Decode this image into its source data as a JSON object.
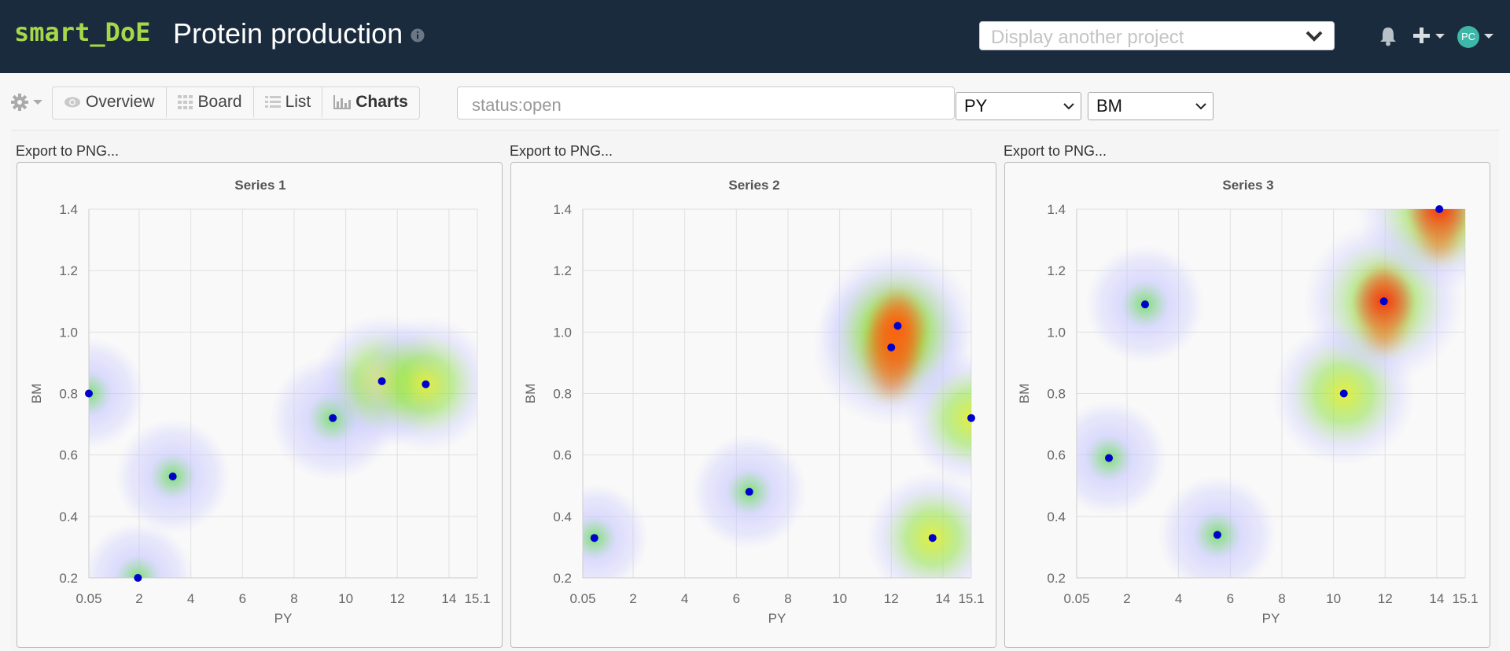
{
  "app": {
    "brand": "smart_DoE",
    "project_title": "Protein production",
    "project_select_placeholder": "Display another project",
    "avatar_initials": "PC",
    "colors": {
      "navbar": "#1b2b3e",
      "brand": "#a6d84a",
      "avatar": "#3fb7a8",
      "point": "#0000cc"
    }
  },
  "toolbar": {
    "tabs": [
      {
        "label": "Overview",
        "icon": "eye-icon"
      },
      {
        "label": "Board",
        "icon": "grid-icon"
      },
      {
        "label": "List",
        "icon": "list-icon"
      },
      {
        "label": "Charts",
        "icon": "bar-chart-icon",
        "active": true
      }
    ],
    "filter_value": "status:open",
    "x_axis_select": "PY",
    "y_axis_select": "BM"
  },
  "charts_export_label": "Export to PNG...",
  "chart_data": [
    {
      "type": "scatter",
      "title": "Series 1",
      "xlabel": "PY",
      "ylabel": "BM",
      "xlim": [
        0.05,
        15.1
      ],
      "ylim": [
        0.2,
        1.4
      ],
      "xticks": [
        "0.05",
        "2",
        "4",
        "6",
        "8",
        "10",
        "12",
        "14",
        "15.1"
      ],
      "yticks": [
        "0.2",
        "0.4",
        "0.6",
        "0.8",
        "1.0",
        "1.2",
        "1.4"
      ],
      "heatmap_overlay": true,
      "points": [
        {
          "x": 0.05,
          "y": 0.8,
          "heat": 0.25
        },
        {
          "x": 1.95,
          "y": 0.2,
          "heat": 0.25
        },
        {
          "x": 3.3,
          "y": 0.53,
          "heat": 0.3
        },
        {
          "x": 9.5,
          "y": 0.72,
          "heat": 0.45
        },
        {
          "x": 11.4,
          "y": 0.84,
          "heat": 0.55
        },
        {
          "x": 13.1,
          "y": 0.83,
          "heat": 0.6
        }
      ]
    },
    {
      "type": "scatter",
      "title": "Series 2",
      "xlabel": "PY",
      "ylabel": "BM",
      "xlim": [
        0.05,
        15.1
      ],
      "ylim": [
        0.2,
        1.4
      ],
      "xticks": [
        "0.05",
        "2",
        "4",
        "6",
        "8",
        "10",
        "12",
        "14",
        "15.1"
      ],
      "yticks": [
        "0.2",
        "0.4",
        "0.6",
        "0.8",
        "1.0",
        "1.2",
        "1.4"
      ],
      "heatmap_overlay": true,
      "points": [
        {
          "x": 0.5,
          "y": 0.33,
          "heat": 0.2
        },
        {
          "x": 6.5,
          "y": 0.48,
          "heat": 0.3
        },
        {
          "x": 12.0,
          "y": 0.95,
          "heat": 0.9
        },
        {
          "x": 12.25,
          "y": 1.02,
          "heat": 0.9
        },
        {
          "x": 15.1,
          "y": 0.72,
          "heat": 0.55
        },
        {
          "x": 13.6,
          "y": 0.33,
          "heat": 0.55
        }
      ]
    },
    {
      "type": "scatter",
      "title": "Series 3",
      "xlabel": "PY",
      "ylabel": "BM",
      "xlim": [
        0.05,
        15.1
      ],
      "ylim": [
        0.2,
        1.4
      ],
      "xticks": [
        "0.05",
        "2",
        "4",
        "6",
        "8",
        "10",
        "12",
        "14",
        "15.1"
      ],
      "yticks": [
        "0.2",
        "0.4",
        "0.6",
        "0.8",
        "1.0",
        "1.2",
        "1.4"
      ],
      "heatmap_overlay": true,
      "points": [
        {
          "x": 2.7,
          "y": 1.09,
          "heat": 0.35
        },
        {
          "x": 1.3,
          "y": 0.59,
          "heat": 0.3
        },
        {
          "x": 5.5,
          "y": 0.34,
          "heat": 0.35
        },
        {
          "x": 10.4,
          "y": 0.8,
          "heat": 0.7
        },
        {
          "x": 11.95,
          "y": 1.1,
          "heat": 0.95
        },
        {
          "x": 14.1,
          "y": 1.4,
          "heat": 1.0
        }
      ]
    }
  ]
}
